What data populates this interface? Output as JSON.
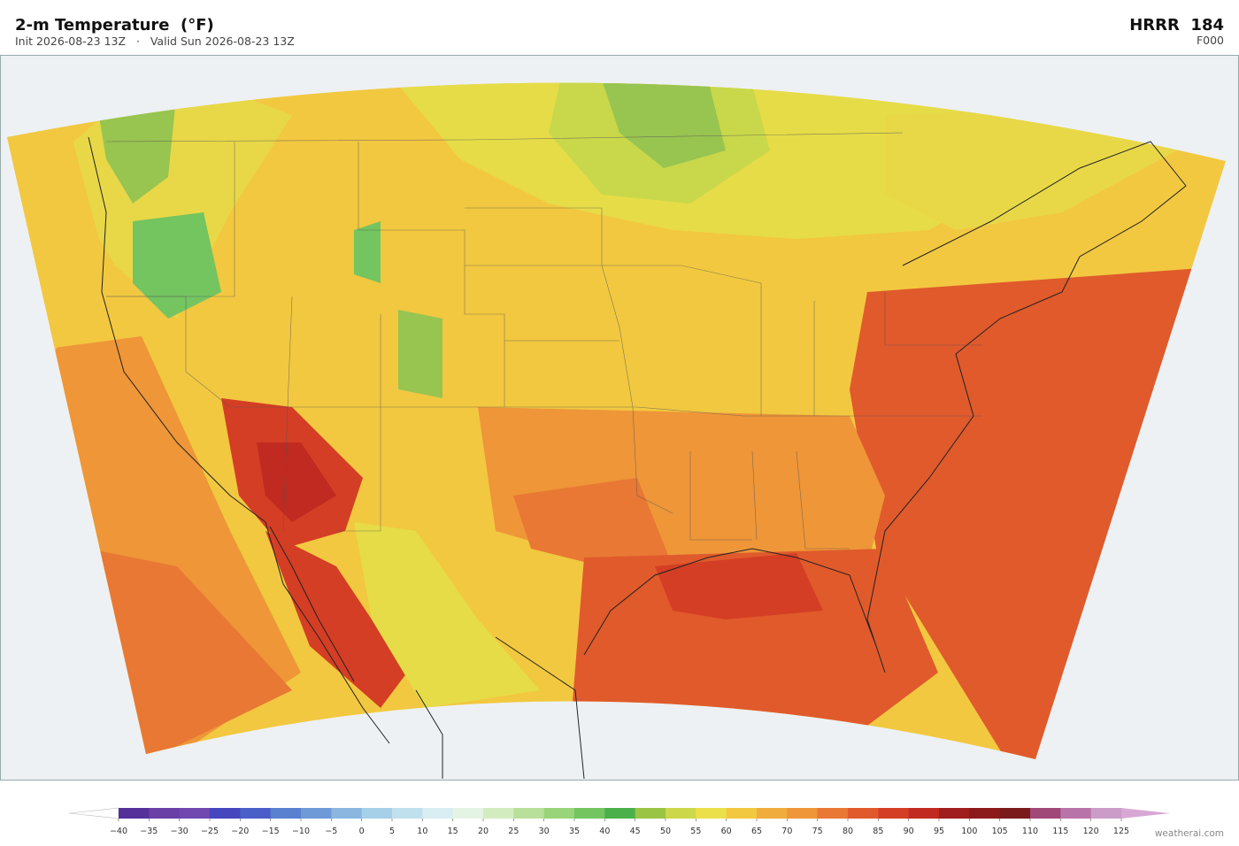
{
  "header": {
    "title": "2-m Temperature  (°F)",
    "subtitle": "Init 2026-08-23 13Z   ·   Valid Sun 2026-08-23 13Z",
    "model": "HRRR  184",
    "forecast_hour": "F000"
  },
  "colorbar": {
    "ticks": [
      {
        "value": -40,
        "label": "−40"
      },
      {
        "value": -35,
        "label": "−35"
      },
      {
        "value": -30,
        "label": "−30"
      },
      {
        "value": -25,
        "label": "−25"
      },
      {
        "value": -20,
        "label": "−20"
      },
      {
        "value": -15,
        "label": "−15"
      },
      {
        "value": -10,
        "label": "−10"
      },
      {
        "value": -5,
        "label": "−5"
      },
      0,
      5,
      10,
      15,
      20,
      25,
      30,
      35,
      40,
      45,
      50,
      55,
      60,
      65,
      70,
      75,
      80,
      85,
      90,
      95,
      100,
      105,
      110,
      115,
      120,
      125
    ],
    "colors": [
      "#55309a",
      "#6a3fa6",
      "#7048b0",
      "#4646be",
      "#4a5fc8",
      "#5a80d0",
      "#6e9ad8",
      "#8ab6e0",
      "#a6cfe8",
      "#c0e0ee",
      "#d8eef2",
      "#e4f4e4",
      "#d2ecc0",
      "#b8e09a",
      "#98d47a",
      "#74c460",
      "#4cb04a",
      "#9ac444",
      "#ccd84a",
      "#ece04a",
      "#f2c840",
      "#f0ac3c",
      "#ee9638",
      "#e87834",
      "#e05a2c",
      "#d43e24",
      "#c02a20",
      "#a01e1e",
      "#8c1a1a",
      "#7a1a1a",
      "#a04878",
      "#b874a8",
      "#cc9cc8"
    ],
    "under_color": "#ffffff",
    "over_color": "#d8a8d4"
  },
  "watermark": "weatherai.com"
}
